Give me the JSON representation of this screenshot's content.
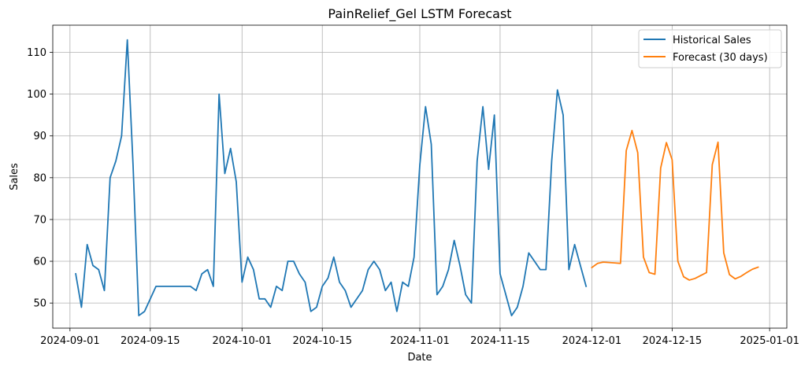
{
  "chart_data": {
    "type": "line",
    "title": "PainRelief_Gel LSTM Forecast",
    "xlabel": "Date",
    "ylabel": "Sales",
    "x_ticks": [
      "2024-09-01",
      "2024-09-15",
      "2024-10-01",
      "2024-10-15",
      "2024-11-01",
      "2024-11-15",
      "2024-12-01",
      "2024-12-15",
      "2025-01-01"
    ],
    "y_ticks": [
      50,
      60,
      70,
      80,
      90,
      100,
      110
    ],
    "xlim": [
      "2024-08-29",
      "2025-01-04"
    ],
    "ylim": [
      44,
      116.5
    ],
    "grid": true,
    "legend_position": "top-right",
    "series": [
      {
        "name": "Historical Sales",
        "color": "#1f77b4",
        "x": [
          "2024-09-02",
          "2024-09-03",
          "2024-09-04",
          "2024-09-05",
          "2024-09-06",
          "2024-09-07",
          "2024-09-08",
          "2024-09-09",
          "2024-09-10",
          "2024-09-11",
          "2024-09-12",
          "2024-09-13",
          "2024-09-14",
          "2024-09-15",
          "2024-09-16",
          "2024-09-17",
          "2024-09-18",
          "2024-09-19",
          "2024-09-20",
          "2024-09-21",
          "2024-09-22",
          "2024-09-23",
          "2024-09-24",
          "2024-09-25",
          "2024-09-26",
          "2024-09-27",
          "2024-09-28",
          "2024-09-29",
          "2024-09-30",
          "2024-10-01",
          "2024-10-02",
          "2024-10-03",
          "2024-10-04",
          "2024-10-05",
          "2024-10-06",
          "2024-10-07",
          "2024-10-08",
          "2024-10-09",
          "2024-10-10",
          "2024-10-11",
          "2024-10-12",
          "2024-10-13",
          "2024-10-14",
          "2024-10-15",
          "2024-10-16",
          "2024-10-17",
          "2024-10-18",
          "2024-10-19",
          "2024-10-20",
          "2024-10-21",
          "2024-10-22",
          "2024-10-23",
          "2024-10-24",
          "2024-10-25",
          "2024-10-26",
          "2024-10-27",
          "2024-10-28",
          "2024-10-29",
          "2024-10-30",
          "2024-10-31",
          "2024-11-01",
          "2024-11-02",
          "2024-11-03",
          "2024-11-04",
          "2024-11-05",
          "2024-11-06",
          "2024-11-07",
          "2024-11-08",
          "2024-11-09",
          "2024-11-10",
          "2024-11-11",
          "2024-11-12",
          "2024-11-13",
          "2024-11-14",
          "2024-11-15",
          "2024-11-16",
          "2024-11-17",
          "2024-11-18",
          "2024-11-19",
          "2024-11-20",
          "2024-11-21",
          "2024-11-22",
          "2024-11-23",
          "2024-11-24",
          "2024-11-25",
          "2024-11-26",
          "2024-11-27",
          "2024-11-28",
          "2024-11-29",
          "2024-11-30"
        ],
        "values": [
          57,
          49,
          64,
          59,
          58,
          53,
          80,
          84,
          90,
          113,
          83,
          47,
          48,
          51,
          54,
          54,
          54,
          54,
          54,
          54,
          54,
          53,
          57,
          58,
          54,
          100,
          81,
          87,
          79,
          55,
          61,
          58,
          51,
          51,
          49,
          54,
          53,
          60,
          60,
          57,
          55,
          48,
          49,
          54,
          56,
          61,
          55,
          53,
          49,
          51,
          53,
          58,
          60,
          58,
          53,
          55,
          48,
          55,
          54,
          61,
          83,
          97,
          88,
          52,
          54,
          58,
          65,
          59,
          52,
          50,
          84,
          97,
          82,
          95,
          57,
          52,
          47,
          49,
          54,
          62,
          60,
          58,
          58,
          84,
          101,
          95,
          58,
          64,
          59,
          54
        ]
      },
      {
        "name": "Forecast (30 days)",
        "color": "#ff7f0e",
        "x": [
          "2024-12-01",
          "2024-12-02",
          "2024-12-03",
          "2024-12-04",
          "2024-12-05",
          "2024-12-06",
          "2024-12-07",
          "2024-12-08",
          "2024-12-09",
          "2024-12-10",
          "2024-12-11",
          "2024-12-12",
          "2024-12-13",
          "2024-12-14",
          "2024-12-15",
          "2024-12-16",
          "2024-12-17",
          "2024-12-18",
          "2024-12-19",
          "2024-12-20",
          "2024-12-21",
          "2024-12-22",
          "2024-12-23",
          "2024-12-24",
          "2024-12-25",
          "2024-12-26",
          "2024-12-27",
          "2024-12-28",
          "2024-12-29",
          "2024-12-30"
        ],
        "values": [
          58.5,
          59.5,
          59.8,
          59.7,
          59.6,
          59.5,
          86.5,
          91.3,
          86,
          61,
          57.3,
          56.9,
          82.3,
          88.4,
          84.3,
          60,
          56.3,
          55.5,
          55.9,
          56.6,
          57.3,
          83.1,
          88.5,
          62,
          56.8,
          55.8,
          56.4,
          57.3,
          58.1,
          58.6
        ]
      }
    ]
  }
}
